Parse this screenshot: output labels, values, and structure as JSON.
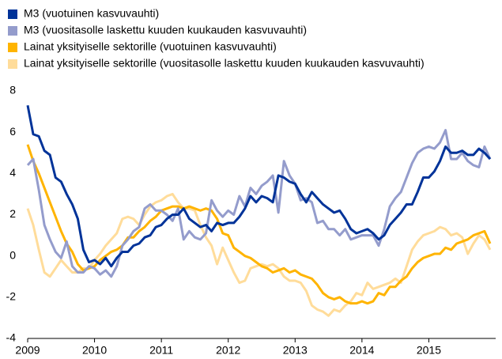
{
  "chart_data": {
    "type": "line",
    "x": [
      2009,
      2009.083,
      2009.167,
      2009.25,
      2009.333,
      2009.417,
      2009.5,
      2009.583,
      2009.667,
      2009.75,
      2009.833,
      2009.917,
      2010,
      2010.083,
      2010.167,
      2010.25,
      2010.333,
      2010.417,
      2010.5,
      2010.583,
      2010.667,
      2010.75,
      2010.833,
      2010.917,
      2011,
      2011.083,
      2011.167,
      2011.25,
      2011.333,
      2011.417,
      2011.5,
      2011.583,
      2011.667,
      2011.75,
      2011.833,
      2011.917,
      2012,
      2012.083,
      2012.167,
      2012.25,
      2012.333,
      2012.417,
      2012.5,
      2012.583,
      2012.667,
      2012.75,
      2012.833,
      2012.917,
      2013,
      2013.083,
      2013.167,
      2013.25,
      2013.333,
      2013.417,
      2013.5,
      2013.583,
      2013.667,
      2013.75,
      2013.833,
      2013.917,
      2014,
      2014.083,
      2014.167,
      2014.25,
      2014.333,
      2014.417,
      2014.5,
      2014.583,
      2014.667,
      2014.75,
      2014.833,
      2014.917,
      2015,
      2015.083,
      2015.167,
      2015.25,
      2015.333,
      2015.417,
      2015.5,
      2015.583,
      2015.667,
      2015.75,
      2015.833,
      2015.917
    ],
    "series": [
      {
        "name": "M3 (vuotuinen kasvuvauhti)",
        "color": "#003399",
        "values": [
          7.3,
          5.9,
          5.8,
          5.1,
          4.9,
          3.8,
          3.6,
          3.0,
          2.5,
          1.8,
          0.3,
          -0.3,
          -0.2,
          -0.4,
          -0.1,
          -0.5,
          -0.1,
          0.2,
          0.2,
          0.5,
          0.6,
          0.9,
          1.0,
          1.4,
          1.5,
          1.8,
          2.0,
          2.0,
          2.3,
          1.8,
          1.6,
          1.4,
          1.5,
          1.2,
          1.6,
          1.5,
          1.6,
          1.6,
          1.9,
          2.3,
          2.9,
          2.6,
          2.9,
          2.8,
          2.6,
          3.9,
          3.8,
          3.6,
          3.5,
          3.0,
          2.6,
          3.1,
          2.8,
          2.5,
          2.3,
          2.1,
          2.2,
          1.8,
          1.3,
          1.1,
          1.2,
          1.3,
          1.1,
          0.8,
          1.0,
          1.5,
          1.8,
          2.1,
          2.5,
          2.5,
          3.1,
          3.8,
          3.8,
          4.1,
          4.6,
          5.3,
          5.0,
          5.0,
          5.1,
          4.9,
          4.9,
          5.2,
          5.0,
          4.7
        ]
      },
      {
        "name": "M3 (vuositasolle laskettu kuuden kuukauden kasvuvauhti)",
        "color": "#949ccc",
        "values": [
          4.4,
          4.7,
          3.2,
          1.5,
          0.8,
          0.2,
          -0.1,
          0.7,
          -0.5,
          -0.8,
          -0.8,
          -0.5,
          -0.6,
          -0.9,
          -0.7,
          -1.0,
          -0.5,
          0.5,
          0.8,
          1.2,
          1.4,
          2.3,
          2.5,
          2.2,
          2.2,
          2.0,
          1.7,
          2.3,
          0.8,
          1.2,
          0.9,
          0.8,
          1.1,
          2.7,
          2.2,
          1.9,
          2.2,
          2.0,
          2.9,
          2.4,
          3.3,
          3.0,
          3.4,
          3.6,
          3.9,
          2.1,
          4.6,
          3.9,
          3.5,
          2.7,
          2.8,
          2.6,
          1.6,
          1.7,
          1.3,
          1.3,
          1.0,
          1.3,
          0.8,
          0.9,
          1.0,
          1.0,
          1.0,
          0.5,
          1.3,
          2.4,
          2.8,
          3.1,
          3.8,
          4.5,
          5.0,
          5.2,
          5.3,
          5.2,
          5.5,
          6.1,
          4.7,
          4.7,
          5.0,
          4.6,
          4.4,
          4.3,
          5.3,
          4.7
        ]
      },
      {
        "name": "Lainat yksityiselle sektorille (vuotuinen kasvuvauhti)",
        "color": "#ffb400",
        "values": [
          5.4,
          4.6,
          4.0,
          3.3,
          2.6,
          1.9,
          1.2,
          0.6,
          0.2,
          -0.4,
          -0.7,
          -0.6,
          -0.5,
          -0.2,
          0.0,
          0.2,
          0.3,
          0.5,
          0.9,
          0.9,
          1.2,
          1.4,
          1.7,
          1.9,
          2.2,
          2.3,
          2.4,
          2.4,
          2.3,
          2.4,
          2.3,
          2.2,
          2.3,
          2.2,
          1.8,
          1.1,
          1.0,
          0.4,
          0.2,
          0.0,
          -0.1,
          -0.3,
          -0.5,
          -0.6,
          -0.8,
          -0.7,
          -0.6,
          -0.8,
          -0.7,
          -0.9,
          -1.0,
          -1.1,
          -1.4,
          -1.8,
          -2.0,
          -2.1,
          -2.0,
          -2.2,
          -2.3,
          -2.3,
          -2.2,
          -2.3,
          -2.2,
          -1.8,
          -1.9,
          -1.5,
          -1.5,
          -1.2,
          -1.0,
          -0.6,
          -0.3,
          -0.1,
          0.0,
          0.1,
          0.1,
          0.4,
          0.3,
          0.6,
          0.7,
          0.8,
          1.0,
          1.1,
          1.2,
          0.6
        ]
      },
      {
        "name": "Lainat yksityiselle sektorille (vuositasolle laskettu kuuden kuukauden kasvuvauhti)",
        "color": "#ffdc9a",
        "values": [
          2.3,
          1.5,
          0.3,
          -0.8,
          -1.0,
          -0.6,
          -0.2,
          -0.5,
          -0.8,
          -0.8,
          -0.6,
          -0.6,
          -0.2,
          0.1,
          0.5,
          0.8,
          1.1,
          1.8,
          1.9,
          1.8,
          1.5,
          2.0,
          2.4,
          2.6,
          2.7,
          2.9,
          3.0,
          2.6,
          2.3,
          2.3,
          2.2,
          1.5,
          0.9,
          0.5,
          -0.4,
          0.4,
          -0.2,
          -0.8,
          -1.3,
          -1.2,
          -0.6,
          -0.5,
          -0.4,
          -0.5,
          -0.4,
          -0.6,
          -1.0,
          -1.2,
          -1.2,
          -1.3,
          -1.7,
          -2.4,
          -2.6,
          -2.7,
          -2.9,
          -2.6,
          -2.7,
          -2.4,
          -2.2,
          -1.8,
          -1.9,
          -1.3,
          -1.6,
          -1.5,
          -1.4,
          -1.3,
          -1.1,
          -1.3,
          -0.5,
          0.3,
          0.7,
          1.0,
          1.1,
          1.2,
          1.4,
          1.3,
          1.0,
          1.1,
          0.9,
          0.1,
          0.6,
          1.0,
          0.8,
          0.3
        ]
      }
    ],
    "xlim": [
      2009,
      2016
    ],
    "xticks": [
      2009,
      2010,
      2011,
      2012,
      2013,
      2014,
      2015
    ],
    "ylim": [
      -4,
      8
    ],
    "yticks": [
      -4,
      -2,
      0,
      2,
      4,
      6,
      8
    ]
  }
}
